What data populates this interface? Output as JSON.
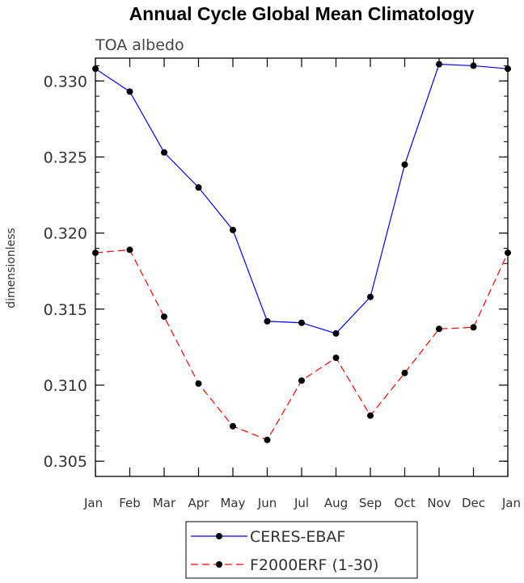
{
  "chart_data": {
    "type": "line",
    "title": "Annual Cycle Global Mean Climatology",
    "subtitle": "TOA albedo",
    "xlabel": "",
    "ylabel": "dimensionless",
    "categories": [
      "Jan",
      "Feb",
      "Mar",
      "Apr",
      "May",
      "Jun",
      "Jul",
      "Aug",
      "Sep",
      "Oct",
      "Nov",
      "Dec",
      "Jan"
    ],
    "ylim": [
      0.304,
      0.3315
    ],
    "yticks": [
      0.305,
      0.31,
      0.315,
      0.32,
      0.325,
      0.33
    ],
    "ytick_labels": [
      "0.305",
      "0.310",
      "0.315",
      "0.320",
      "0.325",
      "0.330"
    ],
    "minor_ytick_step": 0.001,
    "grid": false,
    "legend_position": "bottom-center",
    "series": [
      {
        "name": "CERES-EBAF",
        "color": "#0000ff",
        "line_style": "solid",
        "marker": "filled-circle",
        "marker_color": "#000000",
        "values": [
          0.3308,
          0.3293,
          0.3253,
          0.323,
          0.3202,
          0.3142,
          0.3141,
          0.3134,
          0.3158,
          0.3245,
          0.3311,
          0.331,
          0.3308
        ]
      },
      {
        "name": "F2000ERF (1-30)",
        "color": "#ff0000",
        "line_style": "dashed",
        "marker": "filled-circle",
        "marker_color": "#000000",
        "values": [
          0.3187,
          0.3189,
          0.3145,
          0.3101,
          0.3073,
          0.3064,
          0.3103,
          0.3118,
          0.308,
          0.3108,
          0.3137,
          0.3138,
          0.3187
        ]
      }
    ]
  }
}
